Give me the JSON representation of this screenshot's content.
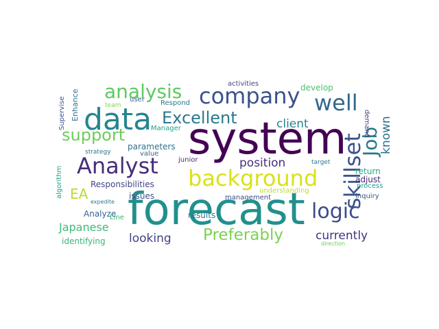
{
  "words": [
    {
      "id": "system",
      "text": "system",
      "color": "#440154"
    },
    {
      "id": "forecast",
      "text": "forecast",
      "color": "#21908d"
    },
    {
      "id": "data",
      "text": "data",
      "color": "#25858e"
    },
    {
      "id": "company",
      "text": "company",
      "color": "#3b528b"
    },
    {
      "id": "background",
      "text": "background",
      "color": "#d8e219"
    },
    {
      "id": "analyst",
      "text": "Analyst",
      "color": "#472c7a"
    },
    {
      "id": "analysis",
      "text": "analysis",
      "color": "#5ec962"
    },
    {
      "id": "well",
      "text": "well",
      "color": "#31688e"
    },
    {
      "id": "excellent",
      "text": "Excellent",
      "color": "#2a788e"
    },
    {
      "id": "support",
      "text": "support",
      "color": "#6ccd5a"
    },
    {
      "id": "skillset",
      "text": "skillset",
      "color": "#3a548c"
    },
    {
      "id": "job",
      "text": "Job",
      "color": "#2a768e"
    },
    {
      "id": "logic",
      "text": "logic",
      "color": "#3e4a89"
    },
    {
      "id": "preferably",
      "text": "Preferably",
      "color": "#7ad151"
    },
    {
      "id": "position",
      "text": "position",
      "color": "#472f7d"
    },
    {
      "id": "ea",
      "text": "EA",
      "color": "#b5de2b"
    },
    {
      "id": "client",
      "text": "client",
      "color": "#27808e"
    },
    {
      "id": "known",
      "text": "known",
      "color": "#2c718e"
    },
    {
      "id": "currently",
      "text": "currently",
      "color": "#46327e"
    },
    {
      "id": "looking",
      "text": "looking",
      "color": "#404387"
    },
    {
      "id": "japanese",
      "text": "Japanese",
      "color": "#3bbb75"
    },
    {
      "id": "responsibilities",
      "text": "Responsibilities",
      "color": "#414487"
    },
    {
      "id": "parameters",
      "text": "parameters",
      "color": "#2d708e"
    },
    {
      "id": "identifying",
      "text": "identifying",
      "color": "#35b779"
    },
    {
      "id": "analyze",
      "text": "Analyze",
      "color": "#33638d"
    },
    {
      "id": "issues",
      "text": "issues",
      "color": "#3a538b"
    },
    {
      "id": "results",
      "text": "results",
      "color": "#2b748e"
    },
    {
      "id": "return",
      "text": "return",
      "color": "#22a884"
    },
    {
      "id": "adjust",
      "text": "adjust",
      "color": "#482475"
    },
    {
      "id": "process",
      "text": "process",
      "color": "#1fa088"
    },
    {
      "id": "develop",
      "text": "develop",
      "color": "#4ac16d"
    },
    {
      "id": "demand",
      "text": "demand",
      "color": "#3e4989"
    },
    {
      "id": "activities",
      "text": "activities",
      "color": "#414487"
    },
    {
      "id": "enhance",
      "text": "Enhance",
      "color": "#2c728e"
    },
    {
      "id": "supervise",
      "text": "Supervise",
      "color": "#3b528b"
    },
    {
      "id": "algorithm",
      "text": "algorithm",
      "color": "#1fa088"
    },
    {
      "id": "user",
      "text": "user",
      "color": "#31688e"
    },
    {
      "id": "respond",
      "text": "Respond",
      "color": "#2a788e"
    },
    {
      "id": "team",
      "text": "team",
      "color": "#86d549"
    },
    {
      "id": "manager",
      "text": "Manager",
      "color": "#20a486"
    },
    {
      "id": "strategy",
      "text": "strategy",
      "color": "#2c728e"
    },
    {
      "id": "value",
      "text": "value",
      "color": "#33638d"
    },
    {
      "id": "junior",
      "text": "junior",
      "color": "#472878"
    },
    {
      "id": "target",
      "text": "target",
      "color": "#2a788e"
    },
    {
      "id": "understanding",
      "text": "understanding",
      "color": "#b8de29"
    },
    {
      "id": "management",
      "text": "management",
      "color": "#3e4a89"
    },
    {
      "id": "inquiry",
      "text": "inquiry",
      "color": "#3b528b"
    },
    {
      "id": "line",
      "text": "Line",
      "color": "#35b779"
    },
    {
      "id": "expedite",
      "text": "expedite",
      "color": "#2a788e"
    },
    {
      "id": "direction",
      "text": "direction",
      "color": "#6ccd5a"
    }
  ]
}
